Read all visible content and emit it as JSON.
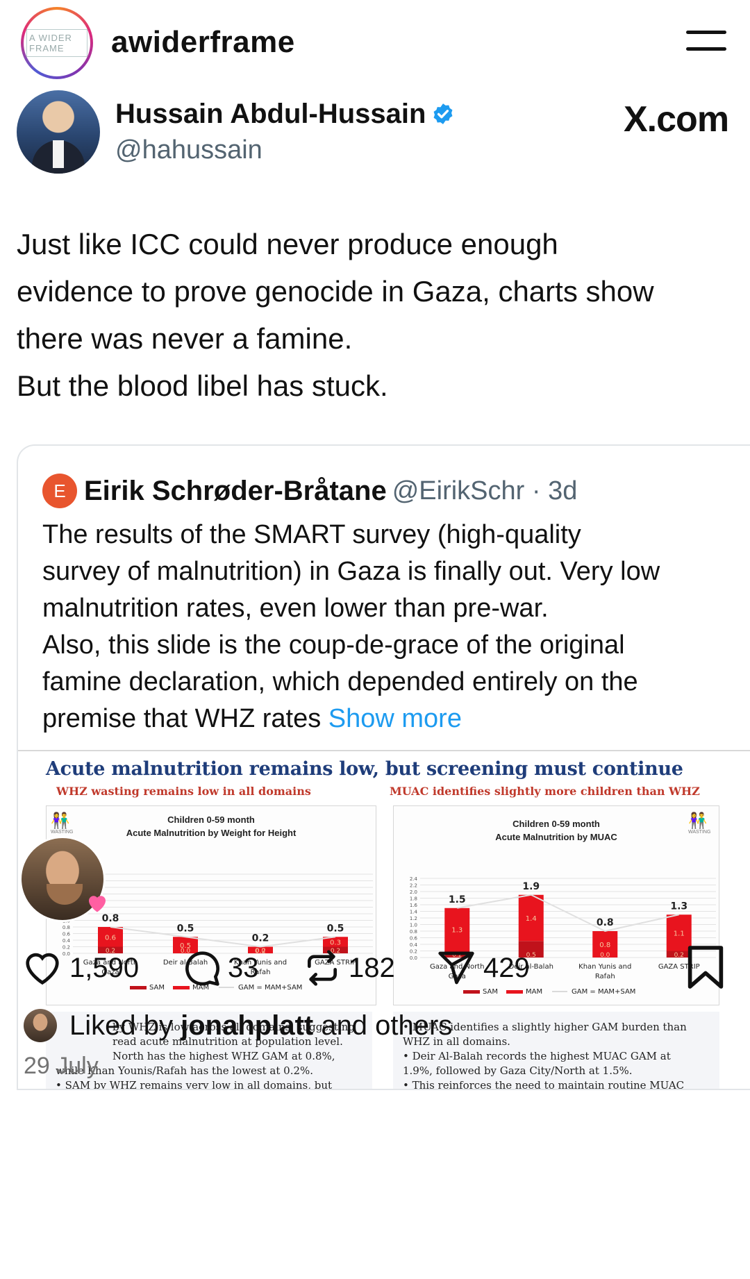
{
  "instagram": {
    "avatar_text": "A WIDER FRAME",
    "username": "awiderframe"
  },
  "tweet": {
    "author_name": "Hussain Abdul-Hussain",
    "handle": "@hahussain",
    "source_logo": "X.com",
    "body": [
      "Just like ICC could never produce enough",
      "evidence to prove genocide in Gaza, charts show",
      "there was never a famine.",
      "But the blood libel has stuck."
    ]
  },
  "quote": {
    "avatar_letter": "E",
    "author_name": "Eirik Schrøder-Bråtane",
    "handle_time": "@EirikSchr · 3d",
    "text": [
      "The results of the SMART survey (high-quality",
      "survey of malnutrition) in Gaza is finally out. Very low",
      "malnutrition rates, even lower than pre-war.",
      "Also, this slide is the coup-de-grace of the original",
      "famine declaration, which depended entirely on the"
    ],
    "text_last": "premise that WHZ rates ",
    "show_more": "Show more"
  },
  "slide": {
    "title": "Acute malnutrition remains low, but screening must continue",
    "left_subtitle": "WHZ wasting remains low in all domains",
    "right_subtitle": "MUAC identifies slightly more children than WHZ",
    "icon_label": "WASTING",
    "left_notes": [
      "by WHZ is low across all domains, suggesting",
      "read acute malnutrition at population level.",
      "North has the highest WHZ GAM at 0.8%,",
      "while Khan Younis/Rafah has the lowest at 0.2%.",
      "• SAM by WHZ remains very low in all domains, but"
    ],
    "right_notes": [
      "• MUAC identifies a slightly higher GAM burden than",
      "WHZ in all domains.",
      "• Deir Al-Balah records the highest MUAC GAM at",
      "1.9%, followed by Gaza City/North at 1.5%.",
      "• This reinforces the need to maintain routine MUAC"
    ]
  },
  "chart_data": [
    {
      "type": "bar",
      "title": "Children 0-59 month",
      "subtitle": "Acute Malnutrition by Weight for Height",
      "categories": [
        "Gaza and North Gaza",
        "Deir al-Balah",
        "Khan Yunis and Rafah",
        "GAZA STRIP"
      ],
      "series": [
        {
          "name": "SAM",
          "values": [
            0.2,
            0.0,
            0.0,
            0.2
          ]
        },
        {
          "name": "MAM",
          "values": [
            0.6,
            0.5,
            0.2,
            0.3
          ]
        },
        {
          "name": "GAM = MAM+SAM",
          "values": [
            0.8,
            0.5,
            0.2,
            0.5
          ]
        }
      ],
      "yticks": [
        "2.4",
        "2.2",
        "2.0",
        "1.8",
        "1.6",
        "1.4",
        "1.2",
        "1.0",
        "0.8",
        "0.6",
        "0.4",
        "0.2",
        "0.0"
      ],
      "ylim": [
        0,
        2.4
      ],
      "grid": true,
      "legend": "bottom",
      "colors": {
        "SAM": "#c0121b",
        "MAM": "#e8141e",
        "GAM": "#e0e0e0"
      }
    },
    {
      "type": "bar",
      "title": "Children 0-59 month",
      "subtitle": "Acute Malnutrition by MUAC",
      "categories": [
        "Gaza and North Gaza",
        "Deir al-Balah",
        "Khan Yunis and Rafah",
        "GAZA STRIP"
      ],
      "series": [
        {
          "name": "SAM",
          "values": [
            0.2,
            0.5,
            0.0,
            0.2
          ]
        },
        {
          "name": "MAM",
          "values": [
            1.3,
            1.4,
            0.8,
            1.1
          ]
        },
        {
          "name": "GAM = MAM+SAM",
          "values": [
            1.5,
            1.9,
            0.8,
            1.3
          ]
        }
      ],
      "yticks": [
        "2.4",
        "2.2",
        "2.0",
        "1.8",
        "1.6",
        "1.4",
        "1.2",
        "1.0",
        "0.8",
        "0.6",
        "0.4",
        "0.2",
        "0.0"
      ],
      "ylim": [
        0,
        2.4
      ],
      "grid": true,
      "legend": "bottom",
      "colors": {
        "SAM": "#c0121b",
        "MAM": "#e8141e",
        "GAM": "#e0e0e0"
      }
    }
  ],
  "actions": {
    "likes": "1,590",
    "comments": "33",
    "reposts": "182",
    "shares": "429"
  },
  "liked_by": {
    "prefix": "Liked by ",
    "user": "jonahplatt",
    "suffix": " and others"
  },
  "date": "29 July"
}
